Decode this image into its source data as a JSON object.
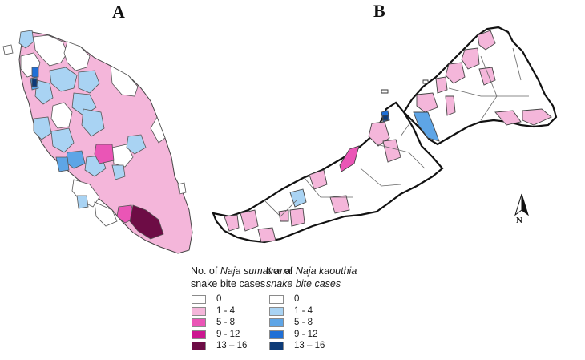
{
  "panels": {
    "a": {
      "label": "A"
    },
    "b": {
      "label": "B"
    }
  },
  "legend_a": {
    "title_prefix": "No. of ",
    "species": "Naja sumatrana",
    "title_line2": "snake bite cases",
    "items": [
      {
        "label": "0",
        "color": "#ffffff"
      },
      {
        "label": "1 - 4",
        "color": "#f4b6da"
      },
      {
        "label": "5 - 8",
        "color": "#ea55b6"
      },
      {
        "label": "9 - 12",
        "color": "#cc1690"
      },
      {
        "label": "13 – 16",
        "color": "#6d0c45"
      }
    ]
  },
  "legend_b": {
    "title_prefix": "No. of ",
    "species": "Naja kaouthia",
    "title_line2": "snake bite cases",
    "items": [
      {
        "label": "0",
        "color": "#ffffff"
      },
      {
        "label": "1 - 4",
        "color": "#a9d3f3"
      },
      {
        "label": "5 - 8",
        "color": "#5ea5e6"
      },
      {
        "label": "9 - 12",
        "color": "#1f6fd6"
      },
      {
        "label": "13 – 16",
        "color": "#0d3b78"
      }
    ]
  },
  "north_arrow": {
    "label": "N"
  },
  "colors": {
    "sumatrana_low": "#f4b6da",
    "sumatrana_mid": "#ea55b6",
    "sumatrana_high": "#cc1690",
    "sumatrana_max": "#6d0c45",
    "kaouthia_low": "#a9d3f3",
    "kaouthia_mid": "#5ea5e6",
    "kaouthia_high": "#1f6fd6",
    "kaouthia_max": "#0d3b78",
    "border": "#2b2b2b"
  }
}
